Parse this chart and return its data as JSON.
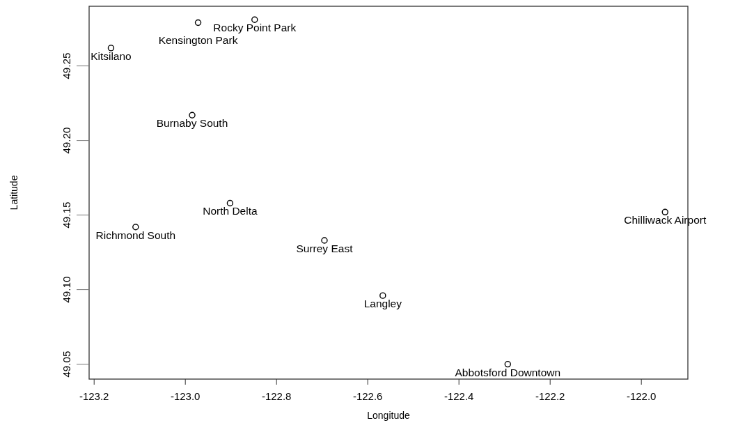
{
  "chart_data": {
    "type": "scatter",
    "xlabel": "Longitude",
    "ylabel": "Latitude",
    "marker": "circle",
    "xlim": [
      -123.211,
      -121.898
    ],
    "ylim": [
      49.04,
      49.29
    ],
    "xticks": [
      -123.2,
      {
        "value": -123.0,
        "label": "-123.0"
      },
      -122.8,
      -122.6,
      -122.4,
      -122.2,
      {
        "value": -122.0,
        "label": "-122.0"
      }
    ],
    "yticks": [
      {
        "value": 49.25,
        "label": "49.25"
      },
      {
        "value": 49.2,
        "label": "49.20"
      },
      {
        "value": 49.15,
        "label": "49.15"
      },
      {
        "value": 49.1,
        "label": "49.10"
      },
      {
        "value": 49.05,
        "label": "49.05"
      }
    ],
    "series": [
      {
        "color": "#000000",
        "x": [
          -122.972,
          -122.848,
          -123.163,
          -122.985,
          -122.902,
          -123.109,
          -122.695,
          -122.567,
          -122.293,
          -121.948
        ],
        "values": [
          49.279,
          49.281,
          49.262,
          49.217,
          49.158,
          49.142,
          49.133,
          49.096,
          49.05,
          49.152
        ]
      }
    ],
    "annotations": [
      {
        "text": "Rocky Point Park",
        "x": -122.848,
        "y": 49.281
      },
      {
        "text": "Kensington Park",
        "x": -122.972,
        "y": 49.279
      },
      {
        "text": "Kitsilano",
        "x": -123.163,
        "y": 49.262
      },
      {
        "text": "Burnaby South",
        "x": -122.985,
        "y": 49.217
      },
      {
        "text": "North Delta",
        "x": -122.902,
        "y": 49.158
      },
      {
        "text": "Richmond South",
        "x": -123.109,
        "y": 49.142
      },
      {
        "text": "Surrey East",
        "x": -122.695,
        "y": 49.133
      },
      {
        "text": "Langley",
        "x": -122.567,
        "y": 49.096
      },
      {
        "text": "Abbotsford Downtown",
        "x": -122.293,
        "y": 49.05
      },
      {
        "text": "Chilliwack Airport",
        "x": -121.948,
        "y": 49.152
      }
    ]
  }
}
